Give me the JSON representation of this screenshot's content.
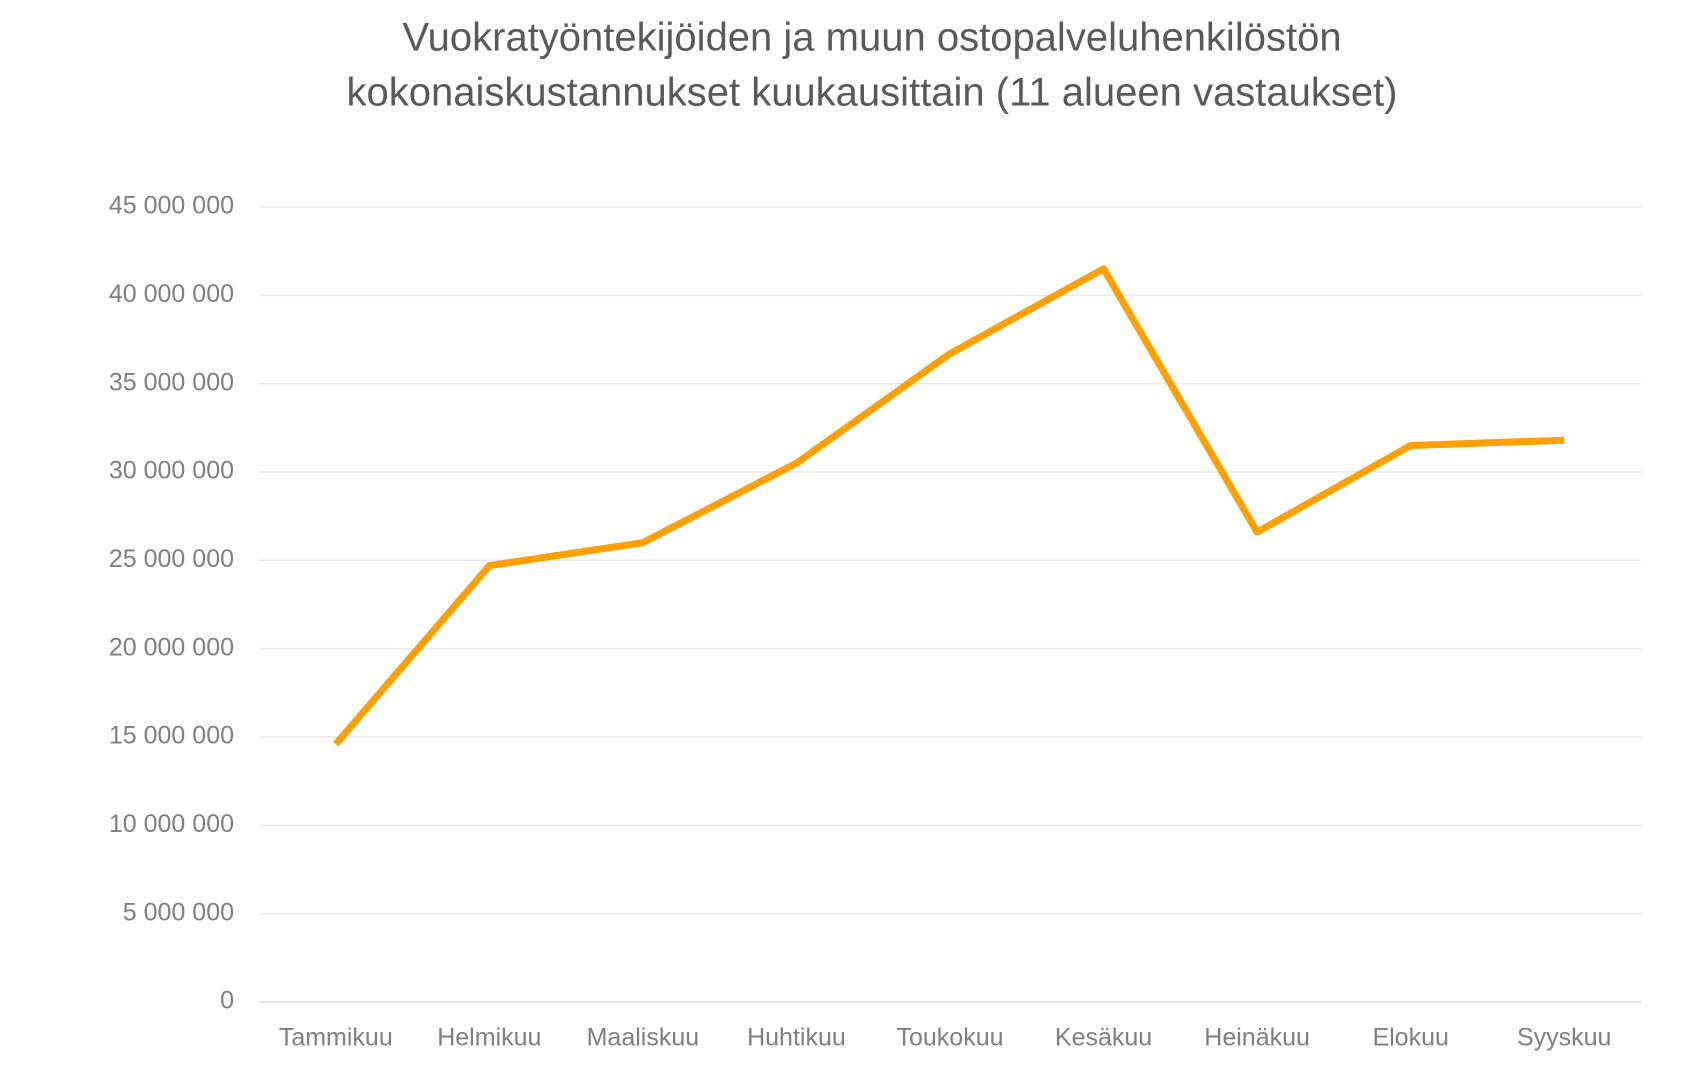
{
  "chart_data": {
    "type": "line",
    "title": [
      "Vuokratyöntekijöiden ja muun ostopalveluhenkilöstön",
      "kokonaiskustannukset kuukausittain (11 alueen vastaukset)"
    ],
    "categories": [
      "Tammikuu",
      "Helmikuu",
      "Maaliskuu",
      "Huhtikuu",
      "Toukokuu",
      "Kesäkuu",
      "Heinäkuu",
      "Elokuu",
      "Syyskuu"
    ],
    "series": [
      {
        "color": "#ffa000",
        "values": [
          14600000,
          24700000,
          26000000,
          30500000,
          36700000,
          41500000,
          26600000,
          31500000,
          31800000
        ]
      }
    ],
    "ylim": [
      0,
      45000000
    ],
    "yticks": [
      0,
      {
        "value": 5000000,
        "label": "5 000 000"
      },
      {
        "value": 10000000,
        "label": "10 000 000"
      },
      {
        "value": 15000000,
        "label": "15 000 000"
      },
      {
        "value": 20000000,
        "label": "20 000 000"
      },
      {
        "value": 25000000,
        "label": "25 000 000"
      },
      {
        "value": 30000000,
        "label": "30 000 000"
      },
      {
        "value": 35000000,
        "label": "35 000 000"
      },
      {
        "value": 40000000,
        "label": "40 000 000"
      },
      {
        "value": 45000000,
        "label": "45 000 000"
      }
    ],
    "grid": true
  }
}
